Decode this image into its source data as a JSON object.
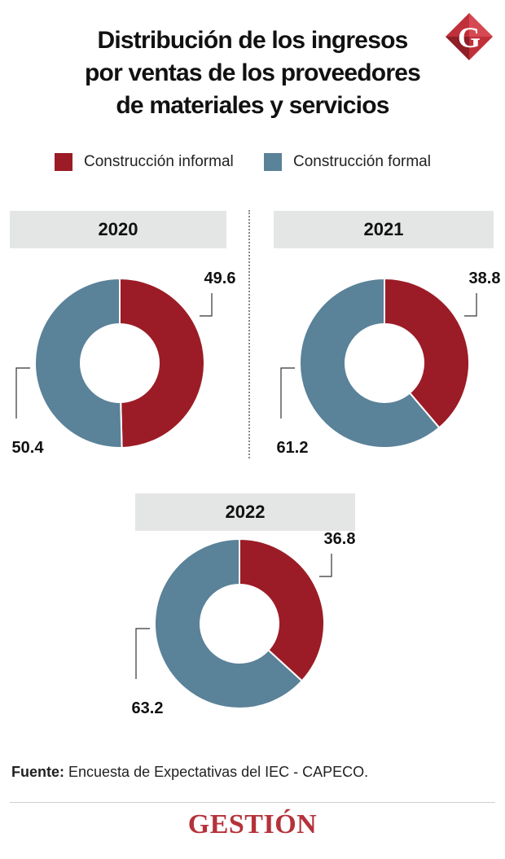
{
  "header": {
    "title_lines": [
      "Distribución de los ingresos",
      "por ventas de los proveedores",
      "de materiales y servicios"
    ]
  },
  "logo": {
    "letter": "G",
    "colors": [
      "#c0303a",
      "#8f1e26"
    ]
  },
  "legend": [
    {
      "label": "Construcción informal",
      "color": "#9b1c26"
    },
    {
      "label": "Construcción formal",
      "color": "#5a8299"
    }
  ],
  "chart_data": [
    {
      "type": "pie",
      "subtitle": "2020",
      "categories": [
        "Construcción informal",
        "Construcción formal"
      ],
      "values": [
        49.6,
        50.4
      ],
      "labels": [
        "49.6",
        "50.4"
      ],
      "donut": true
    },
    {
      "type": "pie",
      "subtitle": "2021",
      "categories": [
        "Construcción informal",
        "Construcción formal"
      ],
      "values": [
        38.8,
        61.2
      ],
      "labels": [
        "38.8",
        "61.2"
      ],
      "donut": true
    },
    {
      "type": "pie",
      "subtitle": "2022",
      "categories": [
        "Construcción informal",
        "Construcción formal"
      ],
      "values": [
        36.8,
        63.2
      ],
      "labels": [
        "36.8",
        "63.2"
      ],
      "donut": true
    }
  ],
  "source": {
    "label": "Fuente:",
    "text": "Encuesta de Expectativas del IEC - CAPECO."
  },
  "brand": {
    "name": "GESTIÓN"
  }
}
